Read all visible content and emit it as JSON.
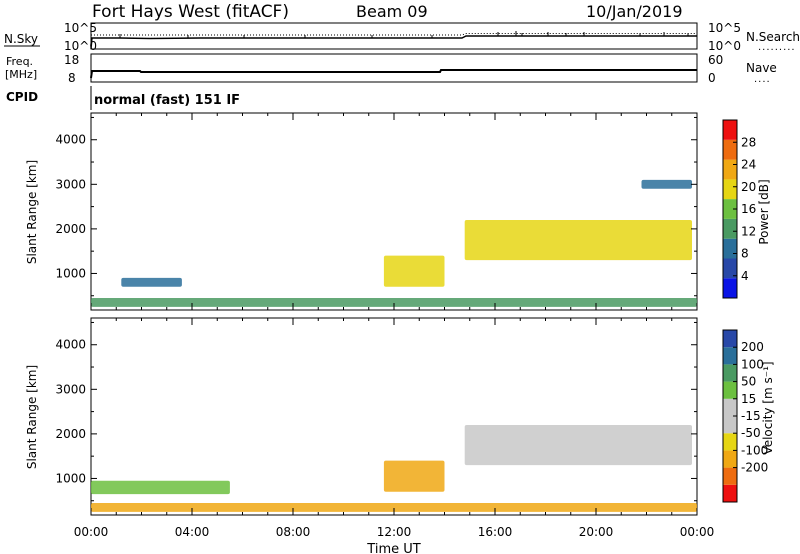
{
  "header": {
    "station": "Fort Hays West (fitACF)",
    "beam": "Beam 09",
    "date": "10/Jan/2019"
  },
  "noise_panel": {
    "left_label": "N.Sky",
    "left_ticks": [
      "10^5",
      "10^0"
    ],
    "right_label": "N.Search",
    "right_ticks": [
      "10^5",
      "10^0"
    ]
  },
  "freq_panel": {
    "left_label_1": "Freq.",
    "left_label_2": "[MHz]",
    "left_ticks": [
      "18",
      "8"
    ],
    "right_label": "Nave",
    "right_ticks": [
      "60",
      "0"
    ]
  },
  "cpid": {
    "label": "CPID",
    "value": "normal (fast) 151 IF"
  },
  "colors": {
    "power_scale": [
      "#0a14e6",
      "#2848a8",
      "#2a6f9a",
      "#4a9a62",
      "#6cc040",
      "#e6d614",
      "#f0a814",
      "#ee6c10",
      "#ee1010"
    ],
    "velocity_scale": [
      "#ee1010",
      "#ee6c10",
      "#f0a814",
      "#e6d614",
      "#c8c8c8",
      "#c8c8c8",
      "#6cc040",
      "#4a9a62",
      "#2a6f9a",
      "#2848a8"
    ]
  },
  "chart_data": [
    {
      "type": "heatmap",
      "panel": "power",
      "ylabel": "Slant Range [km]",
      "xlabel": "",
      "x_ticks": [
        "00:00",
        "04:00",
        "08:00",
        "12:00",
        "16:00",
        "20:00",
        "00:00"
      ],
      "x_range_hours": [
        0,
        24
      ],
      "y_ticks": [
        1000,
        2000,
        3000,
        4000
      ],
      "y_range_km": [
        180,
        4600
      ],
      "colorbar": {
        "label": "Power [dB]",
        "ticks": [
          4,
          8,
          12,
          16,
          20,
          24,
          28
        ],
        "range": [
          0,
          32
        ]
      },
      "regions": [
        {
          "name": "near-range band",
          "t_start": 0.0,
          "t_end": 24.0,
          "range_km": [
            250,
            450
          ],
          "value_db": 12
        },
        {
          "name": "early echo",
          "t_start": 1.2,
          "t_end": 3.6,
          "range_km": [
            700,
            900
          ],
          "value_db": 8
        },
        {
          "name": "afternoon patch",
          "t_start": 11.6,
          "t_end": 14.0,
          "range_km": [
            700,
            1400
          ],
          "value_db": 20
        },
        {
          "name": "evening ionospheric scatter",
          "t_start": 14.8,
          "t_end": 23.8,
          "range_km": [
            1300,
            2200
          ],
          "value_db": 18
        },
        {
          "name": "far-range fringe",
          "t_start": 21.8,
          "t_end": 23.8,
          "range_km": [
            2900,
            3100
          ],
          "value_db": 8
        }
      ]
    },
    {
      "type": "heatmap",
      "panel": "velocity",
      "ylabel": "Slant Range [km]",
      "xlabel": "Time UT",
      "x_ticks": [
        "00:00",
        "04:00",
        "08:00",
        "12:00",
        "16:00",
        "20:00",
        "00:00"
      ],
      "x_range_hours": [
        0,
        24
      ],
      "y_ticks": [
        1000,
        2000,
        3000,
        4000
      ],
      "y_range_km": [
        180,
        4600
      ],
      "colorbar": {
        "label": "Velocity [m s⁻¹]",
        "ticks": [
          "200",
          "100",
          "50",
          "15",
          "-15",
          "-50",
          "-100",
          "-200"
        ]
      },
      "regions": [
        {
          "name": "near-range band",
          "t_start": 0.0,
          "t_end": 24.0,
          "range_km": [
            250,
            450
          ],
          "value_ms": -50
        },
        {
          "name": "early echo",
          "t_start": 0.0,
          "t_end": 5.5,
          "range_km": [
            650,
            950
          ],
          "value_ms": 50
        },
        {
          "name": "afternoon patch",
          "t_start": 11.6,
          "t_end": 14.0,
          "range_km": [
            700,
            1400
          ],
          "value_ms": -50
        },
        {
          "name": "evening ionospheric scatter",
          "t_start": 14.8,
          "t_end": 23.8,
          "range_km": [
            1300,
            2200
          ],
          "value_ms": 0
        }
      ]
    }
  ]
}
